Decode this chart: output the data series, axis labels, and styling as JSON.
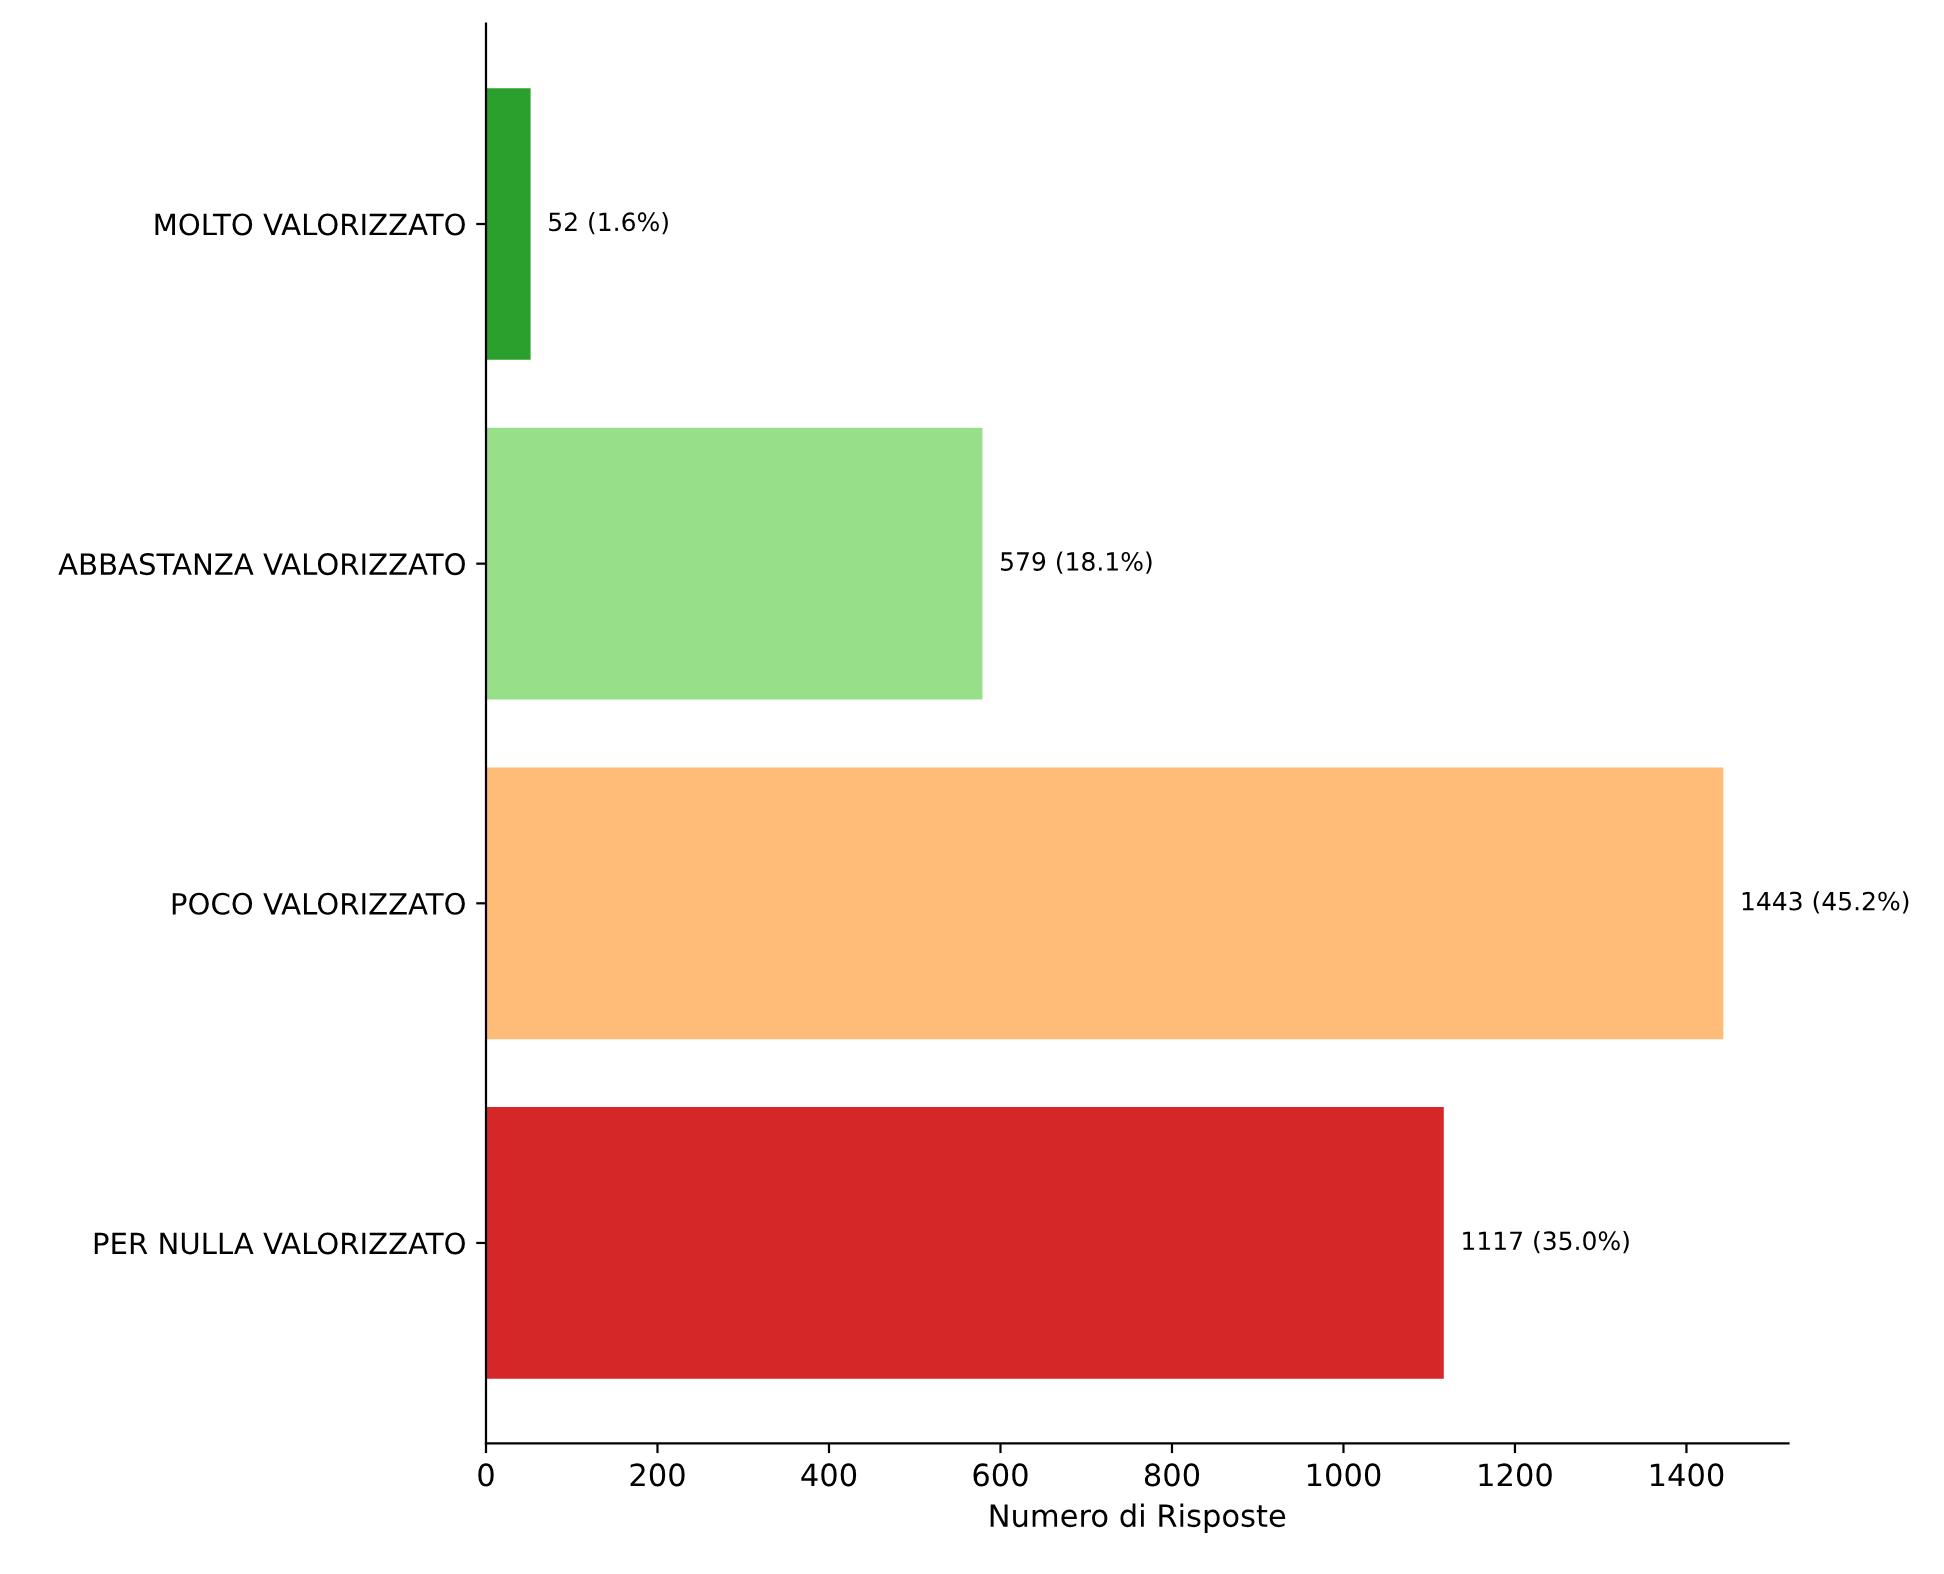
{
  "chart_data": {
    "type": "bar",
    "orientation": "horizontal",
    "categories": [
      "MOLTO VALORIZZATO",
      "ABBASTANZA VALORIZZATO",
      "POCO VALORIZZATO",
      "PER NULLA VALORIZZATO"
    ],
    "values": [
      52,
      579,
      1443,
      1117
    ],
    "colors": [
      "#2ca02c",
      "#98df8a",
      "#ffbb78",
      "#d62728"
    ],
    "value_labels": [
      "52 (1.6%)",
      "579 (18.1%)",
      "1443 (45.2%)",
      "1117 (35.0%)"
    ],
    "xlabel": "Numero di Risposte",
    "xlim": [
      0,
      1519
    ],
    "xticks": [
      0,
      200,
      400,
      600,
      800,
      1000,
      1200,
      1400
    ],
    "grid": false,
    "legend": false
  }
}
